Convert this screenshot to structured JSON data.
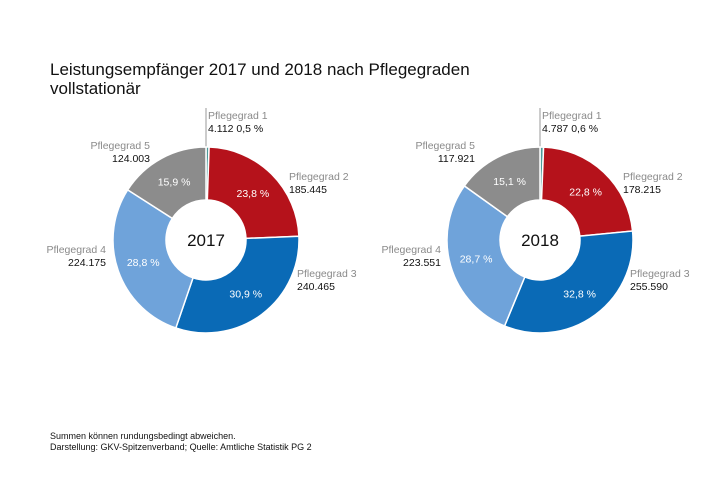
{
  "title_line1": "Leistungsempfänger 2017 und 2018 nach Pflegegraden",
  "title_line2": "vollstationär",
  "footnote_line1": "Summen können rundungsbedingt abweichen.",
  "footnote_line2": "Darstellung: GKV-Spitzenverband; Quelle: Amtliche Statistik PG 2",
  "chart_data": [
    {
      "type": "pie",
      "center_label": "2017",
      "slices": [
        {
          "name": "Pflegegrad 1",
          "value": 4112,
          "value_label": "4.112",
          "percent": 0.5,
          "percent_label": "0,5 %",
          "color": "#4e9a9a"
        },
        {
          "name": "Pflegegrad 2",
          "value": 185445,
          "value_label": "185.445",
          "percent": 23.8,
          "percent_label": "23,8 %",
          "color": "#b5121b"
        },
        {
          "name": "Pflegegrad 3",
          "value": 240465,
          "value_label": "240.465",
          "percent": 30.9,
          "percent_label": "30,9 %",
          "color": "#0a6ab6"
        },
        {
          "name": "Pflegegrad 4",
          "value": 224175,
          "value_label": "224.175",
          "percent": 28.8,
          "percent_label": "28,8 %",
          "color": "#6fa3da"
        },
        {
          "name": "Pflegegrad 5",
          "value": 124003,
          "value_label": "124.003",
          "percent": 15.9,
          "percent_label": "15,9 %",
          "color": "#8c8c8c"
        }
      ]
    },
    {
      "type": "pie",
      "center_label": "2018",
      "slices": [
        {
          "name": "Pflegegrad 1",
          "value": 4787,
          "value_label": "4.787",
          "percent": 0.6,
          "percent_label": "0,6 %",
          "color": "#4e9a9a"
        },
        {
          "name": "Pflegegrad 2",
          "value": 178215,
          "value_label": "178.215",
          "percent": 22.8,
          "percent_label": "22,8 %",
          "color": "#b5121b"
        },
        {
          "name": "Pflegegrad 3",
          "value": 255590,
          "value_label": "255.590",
          "percent": 32.8,
          "percent_label": "32,8 %",
          "color": "#0a6ab6"
        },
        {
          "name": "Pflegegrad 4",
          "value": 223551,
          "value_label": "223.551",
          "percent": 28.7,
          "percent_label": "28,7 %",
          "color": "#6fa3da"
        },
        {
          "name": "Pflegegrad 5",
          "value": 117921,
          "value_label": "117.921",
          "percent": 15.1,
          "percent_label": "15,1 %",
          "color": "#8c8c8c"
        }
      ]
    }
  ]
}
